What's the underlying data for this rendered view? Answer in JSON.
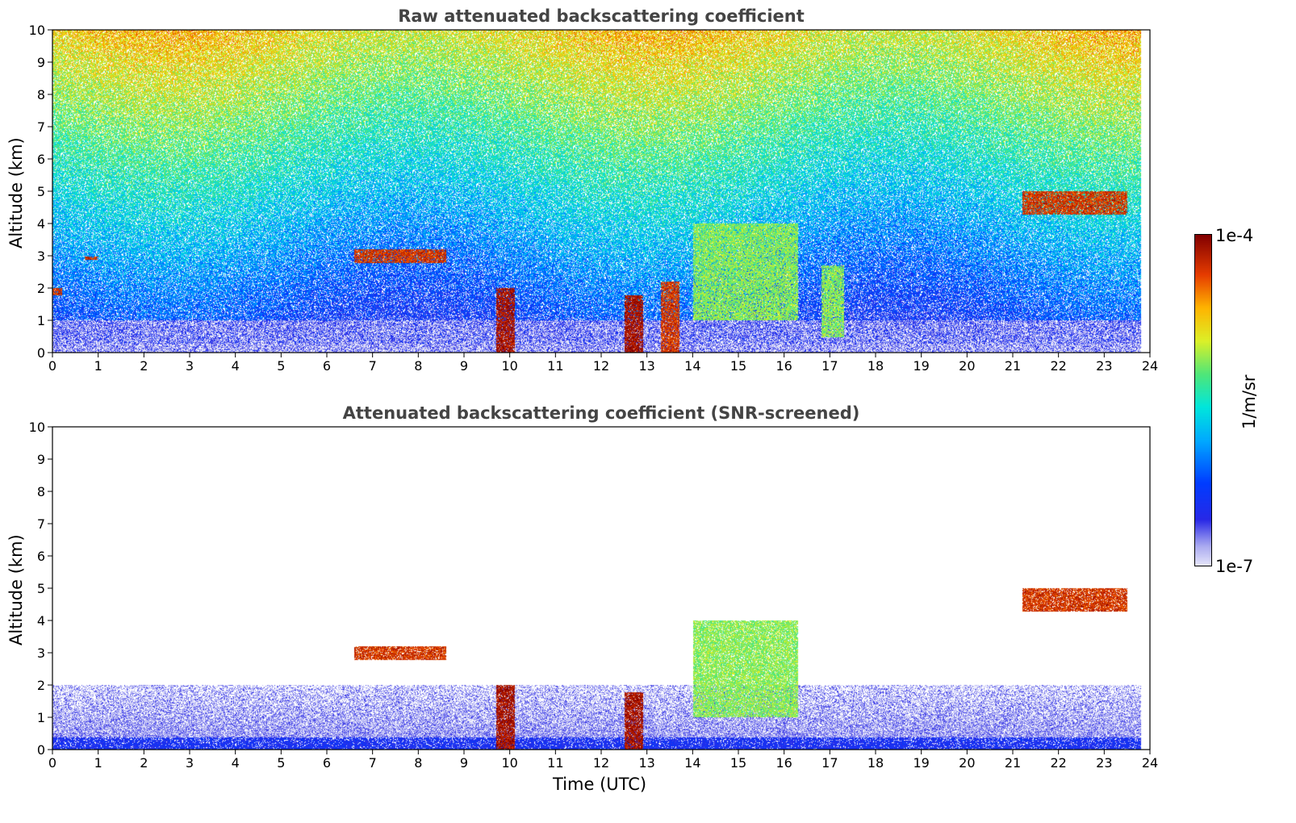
{
  "figure": {
    "xlabel": "Time (UTC)"
  },
  "colorbar": {
    "max_label": "1e-4",
    "min_label": "1e-7",
    "unit_label": "1/m/sr",
    "scale": "log",
    "range": [
      1e-07,
      0.0001
    ],
    "colormap": "jet-like (white/lavender at low end, blue, cyan, green, yellow, orange, dark red at high end)"
  },
  "chart_data": [
    {
      "type": "heatmap",
      "title": "Raw attenuated backscattering coefficient",
      "xlabel": "",
      "ylabel": "Altitude (km)",
      "xlim": [
        0,
        24
      ],
      "ylim": [
        0,
        10
      ],
      "xticks": [
        0,
        1,
        2,
        3,
        4,
        5,
        6,
        7,
        8,
        9,
        10,
        11,
        12,
        13,
        14,
        15,
        16,
        17,
        18,
        19,
        20,
        21,
        22,
        23,
        24
      ],
      "yticks": [
        0,
        1,
        2,
        3,
        4,
        5,
        6,
        7,
        8,
        9,
        10
      ],
      "data_end_time": 23.8,
      "features": [
        {
          "t0": 0.0,
          "t1": 0.2,
          "z0": 1.8,
          "z1": 2.0,
          "level": "high"
        },
        {
          "t0": 0.7,
          "t1": 1.0,
          "z0": 2.9,
          "z1": 3.0,
          "level": "high"
        },
        {
          "t0": 6.6,
          "t1": 8.6,
          "z0": 2.8,
          "z1": 3.2,
          "level": "high"
        },
        {
          "t0": 9.7,
          "t1": 10.1,
          "z0": 0.0,
          "z1": 2.0,
          "level": "very-high"
        },
        {
          "t0": 12.5,
          "t1": 12.9,
          "z0": 0.0,
          "z1": 1.8,
          "level": "very-high"
        },
        {
          "t0": 13.3,
          "t1": 13.7,
          "z0": 0.0,
          "z1": 2.2,
          "level": "high"
        },
        {
          "t0": 14.0,
          "t1": 16.3,
          "z0": 1.0,
          "z1": 4.0,
          "level": "medium-high"
        },
        {
          "t0": 16.8,
          "t1": 17.3,
          "z0": 0.5,
          "z1": 2.7,
          "level": "medium-high"
        },
        {
          "t0": 21.2,
          "t1": 23.5,
          "z0": 4.3,
          "z1": 5.0,
          "level": "high"
        }
      ]
    },
    {
      "type": "heatmap",
      "title": "Attenuated backscattering coefficient (SNR-screened)",
      "xlabel": "Time (UTC)",
      "ylabel": "Altitude (km)",
      "xlim": [
        0,
        24
      ],
      "ylim": [
        0,
        10
      ],
      "xticks": [
        0,
        1,
        2,
        3,
        4,
        5,
        6,
        7,
        8,
        9,
        10,
        11,
        12,
        13,
        14,
        15,
        16,
        17,
        18,
        19,
        20,
        21,
        22,
        23,
        24
      ],
      "yticks": [
        0,
        1,
        2,
        3,
        4,
        5,
        6,
        7,
        8,
        9,
        10
      ],
      "data_end_time": 23.8,
      "features": [
        {
          "t0": 0.0,
          "t1": 23.8,
          "z0": 0.0,
          "z1": 2.0,
          "level": "low"
        },
        {
          "t0": 6.6,
          "t1": 8.6,
          "z0": 2.8,
          "z1": 3.2,
          "level": "high"
        },
        {
          "t0": 9.7,
          "t1": 10.1,
          "z0": 0.0,
          "z1": 2.0,
          "level": "very-high"
        },
        {
          "t0": 12.5,
          "t1": 12.9,
          "z0": 0.0,
          "z1": 1.8,
          "level": "very-high"
        },
        {
          "t0": 14.0,
          "t1": 16.3,
          "z0": 1.0,
          "z1": 4.0,
          "level": "medium-high"
        },
        {
          "t0": 21.2,
          "t1": 23.5,
          "z0": 4.3,
          "z1": 5.0,
          "level": "high"
        }
      ]
    }
  ]
}
